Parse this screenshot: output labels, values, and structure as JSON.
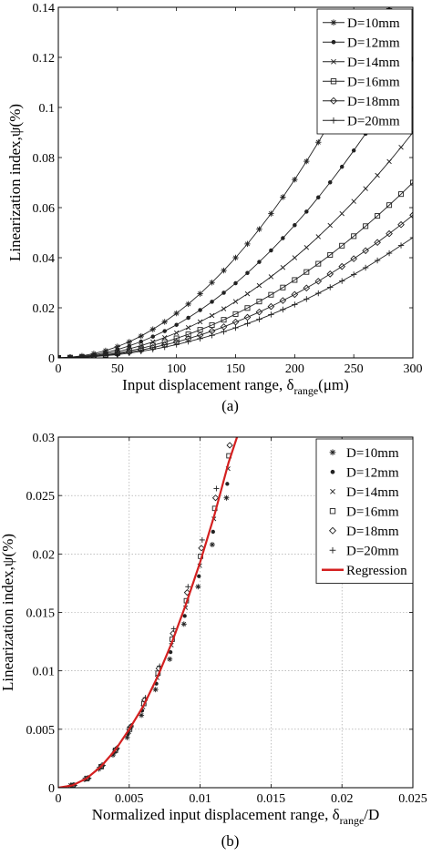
{
  "chart_data": [
    {
      "type": "line",
      "panel_label": "(a)",
      "xlabel_main": "Input displacement range, δ",
      "xlabel_sub": "range",
      "xlabel_tail": "(μm)",
      "ylabel": "Linearization index,ψ(%)",
      "xlim": [
        0,
        300
      ],
      "ylim": [
        0,
        0.14
      ],
      "xticks": [
        0,
        50,
        100,
        150,
        200,
        250,
        300
      ],
      "xtick_labels": [
        "0",
        "50",
        "100",
        "150",
        "200",
        "250",
        "300"
      ],
      "yticks": [
        0,
        0.02,
        0.04,
        0.06,
        0.08,
        0.1,
        0.12,
        0.14
      ],
      "ytick_labels": [
        "0",
        "0.02",
        "0.04",
        "0.06",
        "0.08",
        "0.1",
        "0.12",
        "0.14"
      ],
      "grid": false,
      "legend_position": "top-right",
      "x": [
        0,
        10,
        20,
        30,
        40,
        50,
        60,
        70,
        80,
        90,
        100,
        110,
        120,
        130,
        140,
        150,
        160,
        170,
        180,
        190,
        200,
        210,
        220,
        230,
        240,
        250,
        260,
        270,
        280,
        290,
        300
      ],
      "series": [
        {
          "name": "D=10mm",
          "marker": "star",
          "values": [
            0,
            0.0003,
            0.0008,
            0.0017,
            0.0029,
            0.0045,
            0.0064,
            0.0087,
            0.0114,
            0.0144,
            0.0178,
            0.0215,
            0.0256,
            0.0301,
            0.0349,
            0.04,
            0.0455,
            0.0514,
            0.0576,
            0.0642,
            0.0712,
            0.0785,
            0.0861,
            0.0941,
            0.1024,
            0.1112,
            0.1202,
            0.1297,
            0.1395,
            0.1496,
            0.1601
          ]
        },
        {
          "name": "D=12mm",
          "marker": "dot",
          "values": [
            0,
            0.0002,
            0.0006,
            0.0012,
            0.0021,
            0.0033,
            0.0048,
            0.0065,
            0.0085,
            0.0107,
            0.0132,
            0.016,
            0.0191,
            0.0224,
            0.026,
            0.0298,
            0.0339,
            0.0383,
            0.0429,
            0.0478,
            0.053,
            0.0584,
            0.0641,
            0.0701,
            0.0763,
            0.0828,
            0.0895,
            0.0966,
            0.1038,
            0.1114,
            0.1192
          ]
        },
        {
          "name": "D=14mm",
          "marker": "x",
          "values": [
            0,
            0.0001,
            0.0004,
            0.0009,
            0.0016,
            0.0025,
            0.0036,
            0.0049,
            0.0064,
            0.0081,
            0.01,
            0.0121,
            0.0144,
            0.0169,
            0.0196,
            0.0225,
            0.0256,
            0.0289,
            0.0324,
            0.0361,
            0.04,
            0.0441,
            0.0484,
            0.0529,
            0.0576,
            0.0625,
            0.0676,
            0.0729,
            0.0784,
            0.0841,
            0.09
          ]
        },
        {
          "name": "D=16mm",
          "marker": "square",
          "values": [
            0,
            0.0001,
            0.0003,
            0.0007,
            0.0012,
            0.0019,
            0.0028,
            0.0038,
            0.005,
            0.0063,
            0.0078,
            0.0094,
            0.0112,
            0.0131,
            0.0152,
            0.0175,
            0.0199,
            0.0225,
            0.0252,
            0.0281,
            0.0311,
            0.0343,
            0.0376,
            0.0411,
            0.0448,
            0.0486,
            0.0526,
            0.0567,
            0.061,
            0.0654,
            0.07
          ]
        },
        {
          "name": "D=18mm",
          "marker": "diamond",
          "values": [
            0,
            0.0001,
            0.0003,
            0.0006,
            0.001,
            0.0016,
            0.0023,
            0.0031,
            0.0041,
            0.0052,
            0.0063,
            0.0077,
            0.0091,
            0.0107,
            0.0124,
            0.0143,
            0.0162,
            0.0183,
            0.0205,
            0.0229,
            0.0253,
            0.0279,
            0.0306,
            0.0335,
            0.0365,
            0.0396,
            0.0428,
            0.0461,
            0.0496,
            0.0532,
            0.057
          ]
        },
        {
          "name": "D=20mm",
          "marker": "plus",
          "values": [
            0,
            0,
            0.0002,
            0.0005,
            0.0009,
            0.0013,
            0.0019,
            0.0026,
            0.0034,
            0.0043,
            0.0053,
            0.0065,
            0.0077,
            0.009,
            0.0105,
            0.012,
            0.0137,
            0.0154,
            0.0173,
            0.0193,
            0.0213,
            0.0235,
            0.0258,
            0.0282,
            0.0307,
            0.0333,
            0.036,
            0.0389,
            0.0418,
            0.0449,
            0.048
          ]
        }
      ]
    },
    {
      "type": "scatter",
      "panel_label": "(b)",
      "xlabel_main": "Normalized input displacement range, δ",
      "xlabel_sub": "range",
      "xlabel_tail": "/D",
      "ylabel": "Linearization index,ψ(%)",
      "xlim": [
        0,
        0.025
      ],
      "ylim": [
        0,
        0.03
      ],
      "xticks": [
        0,
        0.005,
        0.01,
        0.015,
        0.02,
        0.025
      ],
      "xtick_labels": [
        "0",
        "0.005",
        "0.01",
        "0.015",
        "0.02",
        "0.025"
      ],
      "yticks": [
        0,
        0.005,
        0.01,
        0.015,
        0.02,
        0.025,
        0.03
      ],
      "ytick_labels": [
        "0",
        "0.005",
        "0.01",
        "0.015",
        "0.02",
        "0.025",
        "0.03"
      ],
      "grid": true,
      "legend_position": "top-right",
      "series": [
        {
          "name": "D=10mm",
          "marker": "star",
          "x": [
            0.001,
            0.002,
            0.003,
            0.004,
            0.005,
            0.006,
            0.007,
            0.008,
            0.009,
            0.01,
            0.011,
            0.012
          ],
          "values": [
            0.0002,
            0.0007,
            0.0016,
            0.0028,
            0.0043,
            0.0062,
            0.0084,
            0.011,
            0.014,
            0.0172,
            0.0208,
            0.0248
          ]
        },
        {
          "name": "D=12mm",
          "marker": "dot",
          "x": [
            0.001,
            0.002,
            0.003,
            0.004,
            0.005,
            0.006,
            0.007,
            0.008,
            0.009,
            0.01,
            0.011,
            0.012
          ],
          "values": [
            0.0002,
            0.0007,
            0.0017,
            0.003,
            0.0046,
            0.0066,
            0.0089,
            0.0116,
            0.0147,
            0.0181,
            0.0219,
            0.026
          ]
        },
        {
          "name": "D=14mm",
          "marker": "x",
          "x": [
            0.001,
            0.002,
            0.003,
            0.004,
            0.005,
            0.006,
            0.007,
            0.008,
            0.009,
            0.01,
            0.011,
            0.012
          ],
          "values": [
            0.0002,
            0.0008,
            0.0018,
            0.0031,
            0.0048,
            0.0069,
            0.0094,
            0.0122,
            0.0154,
            0.019,
            0.023,
            0.0273
          ]
        },
        {
          "name": "D=16mm",
          "marker": "square",
          "x": [
            0.001,
            0.002,
            0.003,
            0.004,
            0.005,
            0.006,
            0.007,
            0.008,
            0.009,
            0.01,
            0.011,
            0.012
          ],
          "values": [
            0.0002,
            0.0008,
            0.0018,
            0.0032,
            0.005,
            0.0072,
            0.0098,
            0.0127,
            0.016,
            0.0198,
            0.0239,
            0.0284
          ]
        },
        {
          "name": "D=18mm",
          "marker": "diamond",
          "x": [
            0.001,
            0.002,
            0.003,
            0.004,
            0.005,
            0.006,
            0.007,
            0.008,
            0.009,
            0.01,
            0.011,
            0.012
          ],
          "values": [
            0.0002,
            0.0008,
            0.0019,
            0.0033,
            0.0052,
            0.0075,
            0.0102,
            0.0132,
            0.0167,
            0.0205,
            0.0248,
            0.0293
          ]
        },
        {
          "name": "D=20mm",
          "marker": "plus",
          "x": [
            0.001,
            0.002,
            0.003,
            0.004,
            0.005,
            0.006,
            0.007,
            0.008,
            0.009,
            0.01,
            0.011,
            0.012
          ],
          "values": [
            0.0002,
            0.0008,
            0.0019,
            0.0034,
            0.0053,
            0.0077,
            0.0104,
            0.0136,
            0.0172,
            0.0212,
            0.0256,
            0.0303
          ]
        },
        {
          "name": "Regression",
          "type": "line",
          "color": "#d42020",
          "x": [
            0,
            0.001,
            0.002,
            0.003,
            0.004,
            0.005,
            0.006,
            0.007,
            0.008,
            0.009,
            0.01,
            0.011,
            0.012,
            0.0126
          ],
          "values": [
            0,
            0.0002,
            0.0008,
            0.0018,
            0.0032,
            0.005,
            0.007,
            0.0095,
            0.0124,
            0.0157,
            0.0193,
            0.0233,
            0.0278,
            0.03
          ]
        }
      ]
    }
  ]
}
